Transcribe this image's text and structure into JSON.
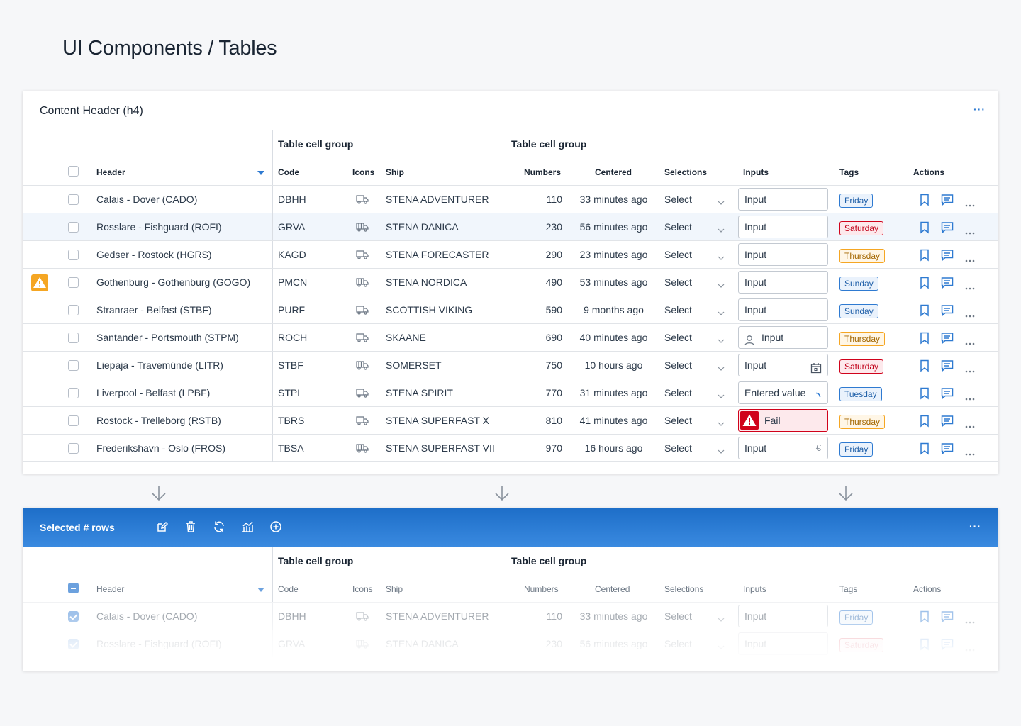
{
  "page_title": "UI Components / Tables",
  "card1": {
    "header": "Content Header (h4)",
    "more": "···"
  },
  "groups": {
    "first": "Table cell group",
    "second": "Table cell group"
  },
  "columns": {
    "header": "Header",
    "code": "Code",
    "icons": "Icons",
    "ship": "Ship",
    "numbers": "Numbers",
    "centered": "Centered",
    "selections": "Selections",
    "inputs": "Inputs",
    "tags": "Tags",
    "actions": "Actions"
  },
  "rows": [
    {
      "route": "Calais - Dover (CADO)",
      "code": "DBHH",
      "icon": "truck-icon",
      "ship": "STENA ADVENTURER",
      "number": "110",
      "time": "33 minutes ago",
      "select": "Select",
      "input": "Input",
      "input_state": "default",
      "tag": "Friday",
      "tag_color": "blue",
      "warning": false,
      "highlight": false
    },
    {
      "route": "Rosslare - Fishguard (ROFI)",
      "code": "GRVA",
      "icon": "truck-trailer-icon",
      "ship": "STENA DANICA",
      "number": "230",
      "time": "56 minutes ago",
      "select": "Select",
      "input": "Input",
      "input_state": "default",
      "tag": "Saturday",
      "tag_color": "red",
      "warning": false,
      "highlight": true
    },
    {
      "route": "Gedser - Rostock (HGRS)",
      "code": "KAGD",
      "icon": "truck-icon",
      "ship": "STENA FORECASTER",
      "number": "290",
      "time": "23 minutes ago",
      "select": "Select",
      "input": "Input",
      "input_state": "default",
      "tag": "Thursday",
      "tag_color": "orange",
      "warning": false,
      "highlight": false
    },
    {
      "route": "Gothenburg - Gothenburg (GOGO)",
      "code": "PMCN",
      "icon": "truck-trailer-icon",
      "ship": "STENA NORDICA",
      "number": "490",
      "time": "53 minutes ago",
      "select": "Select",
      "input": "Input",
      "input_state": "default",
      "tag": "Sunday",
      "tag_color": "blue",
      "warning": true,
      "highlight": false
    },
    {
      "route": "Stranraer - Belfast (STBF)",
      "code": "PURF",
      "icon": "truck-icon",
      "ship": "SCOTTISH VIKING",
      "number": "590",
      "time": "9 months ago",
      "select": "Select",
      "input": "Input",
      "input_state": "default",
      "tag": "Sunday",
      "tag_color": "blue",
      "warning": false,
      "highlight": false
    },
    {
      "route": "Santander - Portsmouth (STPM)",
      "code": "ROCH",
      "icon": "truck-icon",
      "ship": "SKAANE",
      "number": "690",
      "time": "40 minutes ago",
      "select": "Select",
      "input": "Input",
      "input_state": "user",
      "tag": "Thursday",
      "tag_color": "orange",
      "warning": false,
      "highlight": false
    },
    {
      "route": "Liepaja - Travemünde (LITR)",
      "code": "STBF",
      "icon": "truck-trailer-icon",
      "ship": "SOMERSET",
      "number": "750",
      "time": "10 hours ago",
      "select": "Select",
      "input": "Input",
      "input_state": "calendar",
      "tag": "Saturday",
      "tag_color": "red",
      "warning": false,
      "highlight": false
    },
    {
      "route": "Liverpool - Belfast (LPBF)",
      "code": "STPL",
      "icon": "truck-icon",
      "ship": "STENA SPIRIT",
      "number": "770",
      "time": "31 minutes ago",
      "select": "Select",
      "input": "Entered value",
      "input_state": "loading",
      "tag": "Tuesday",
      "tag_color": "blue",
      "warning": false,
      "highlight": false
    },
    {
      "route": "Rostock - Trelleborg (RSTB)",
      "code": "TBRS",
      "icon": "truck-icon",
      "ship": "STENA SUPERFAST X",
      "number": "810",
      "time": "41 minutes ago",
      "select": "Select",
      "input": "Fail",
      "input_state": "fail",
      "tag": "Thursday",
      "tag_color": "orange",
      "warning": false,
      "highlight": false
    },
    {
      "route": "Frederikshavn - Oslo (FROS)",
      "code": "TBSA",
      "icon": "truck-trailer-icon",
      "ship": "STENA SUPERFAST VII",
      "number": "970",
      "time": "16 hours ago",
      "select": "Select",
      "input": "Input",
      "input_state": "euro",
      "input_suffix": "€",
      "tag": "Friday",
      "tag_color": "blue",
      "warning": false,
      "highlight": false
    }
  ],
  "card2": {
    "selected_label": "Selected # rows",
    "more": "···",
    "tools": [
      "edit-icon",
      "trash-icon",
      "refresh-icon",
      "chart-icon",
      "add-circle-icon"
    ],
    "rows": [
      {
        "route": "Calais - Dover (CADO)",
        "code": "DBHH",
        "icon": "truck-icon",
        "ship": "STENA ADVENTURER",
        "number": "110",
        "time": "33 minutes ago",
        "select": "Select",
        "input": "Input",
        "tag": "Friday",
        "tag_color": "blue"
      },
      {
        "route": "Rosslare - Fishguard (ROFI)",
        "code": "GRVA",
        "icon": "truck-trailer-icon",
        "ship": "STENA DANICA",
        "number": "230",
        "time": "56 minutes ago",
        "select": "Select",
        "input": "Input",
        "tag": "Saturday",
        "tag_color": "red"
      }
    ]
  },
  "colors": {
    "accent": "#2e7ad1",
    "warning": "#f5a623",
    "error": "#d0021b",
    "selection_bar": "#2a7cd6"
  }
}
